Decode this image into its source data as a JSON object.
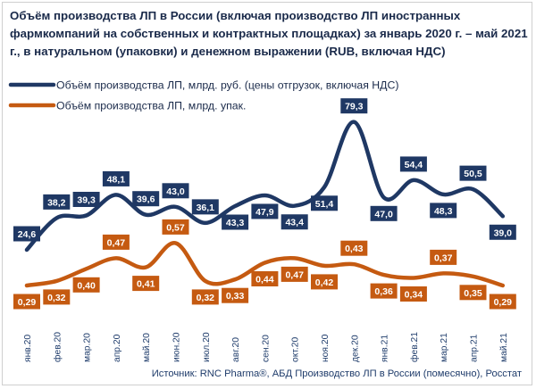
{
  "title": "Объём производства ЛП в России (включая производство ЛП иностранных фармкомпаний на собственных и контрактных площадках) за январь 2020 г. – май 2021 г., в натуральном (упаковки) и денежном выражении (RUB, включая НДС)",
  "source": "Источник: RNC Pharma®, АБД Производство ЛП в России (помесячно), Росстат",
  "colors": {
    "rub": "#1f3864",
    "pack": "#c55a11"
  },
  "chart_data": {
    "type": "line",
    "title": "Объём производства ЛП в России (включая производство ЛП иностранных фармкомпаний на собственных и контрактных площадках) за январь 2020 г. – май 2021 г., в натуральном (упаковки) и денежном выражении (RUB, включая НДС)",
    "categories": [
      "янв.20",
      "фев.20",
      "мар.20",
      "апр.20",
      "май.20",
      "июн.20",
      "июл.20",
      "авг.20",
      "сен.20",
      "окт.20",
      "ноя.20",
      "дек.20",
      "янв.21",
      "фев.21",
      "мар.21",
      "апр.21",
      "май.21"
    ],
    "series": [
      {
        "name": "Объём производства ЛП, млрд. руб. (цены отгрузок, включая НДС)",
        "values": [
          24.6,
          38.2,
          39.3,
          48.1,
          39.6,
          43.0,
          36.1,
          43.3,
          47.9,
          43.4,
          51.4,
          79.3,
          47.0,
          54.4,
          48.3,
          50.5,
          39.0
        ],
        "labels": [
          "24,6",
          "38,2",
          "39,3",
          "48,1",
          "39,6",
          "43,0",
          "36,1",
          "43,3",
          "47,9",
          "43,4",
          "51,4",
          "79,3",
          "47,0",
          "54,4",
          "48,3",
          "50,5",
          "39,0"
        ]
      },
      {
        "name": "Объём производства ЛП, млрд. упак.",
        "values": [
          0.29,
          0.32,
          0.4,
          0.47,
          0.41,
          0.57,
          0.32,
          0.33,
          0.44,
          0.47,
          0.42,
          0.43,
          0.36,
          0.34,
          0.37,
          0.35,
          0.29
        ],
        "labels": [
          "0,29",
          "0,32",
          "0,40",
          "0,47",
          "0,41",
          "0,57",
          "0,32",
          "0,33",
          "0,44",
          "0,47",
          "0,42",
          "0,43",
          "0,36",
          "0,34",
          "0,37",
          "0,35",
          "0,29"
        ]
      }
    ],
    "legend": "top-left",
    "grid": false
  }
}
